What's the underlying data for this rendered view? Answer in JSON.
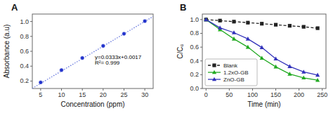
{
  "chart_data": [
    {
      "type": "scatter",
      "title": "A",
      "x_label": "Concentration (ppm)",
      "y_label": "Absorbance (a.u)",
      "xlim": [
        3,
        32
      ],
      "ylim": [
        0.1,
        1.1
      ],
      "xticks": [
        5,
        10,
        15,
        20,
        25,
        30
      ],
      "yticks": [
        0.2,
        0.4,
        0.6,
        0.8,
        {
          "value": 1.0,
          "label": "1.0"
        }
      ],
      "series": [
        {
          "type": "scatter",
          "x": [
            5,
            10,
            15,
            20,
            25,
            30
          ],
          "values": [
            0.182,
            0.347,
            0.51,
            0.672,
            0.835,
            1.005
          ],
          "color": "#2233cc",
          "marker": "circle"
        },
        {
          "type": "line",
          "x": [
            3,
            32
          ],
          "values": [
            0.1016,
            1.0673
          ],
          "color": "#6677dd",
          "line_style": "dotted"
        }
      ],
      "annotations": [
        {
          "text": "y=0.0333x+0.0017",
          "x": 18,
          "y": 0.5
        },
        {
          "text": "R²= 0.999",
          "x": 18,
          "y": 0.42
        }
      ]
    },
    {
      "type": "line",
      "title": "B",
      "x_label": "Time (min)",
      "y_label": "C/C₀",
      "xlim": [
        -8,
        258
      ],
      "ylim": [
        0.0,
        1.08
      ],
      "xticks": [
        0,
        50,
        100,
        150,
        200,
        250
      ],
      "yticks": [
        {
          "value": 0.0,
          "label": "0.0"
        },
        0.2,
        0.4,
        0.6,
        0.8,
        {
          "value": 1.0,
          "label": "1.0"
        }
      ],
      "x": [
        0,
        30,
        60,
        90,
        120,
        150,
        180,
        210,
        240
      ],
      "legend": "lower left",
      "series": [
        {
          "name": "Blank",
          "color": "#222222",
          "marker": "square",
          "line_style": "dashed",
          "values": [
            1.0,
            0.985,
            0.97,
            0.955,
            0.94,
            0.925,
            0.91,
            0.895,
            0.875
          ]
        },
        {
          "name": "1.2xO-GB",
          "color": "#22aa22",
          "marker": "triangle",
          "line_style": "solid",
          "values": [
            1.0,
            0.855,
            0.72,
            0.6,
            0.44,
            0.315,
            0.21,
            0.155,
            0.12
          ]
        },
        {
          "name": "ZnO-GB",
          "color": "#3333bb",
          "marker": "triangle",
          "line_style": "solid",
          "values": [
            1.0,
            0.88,
            0.81,
            0.72,
            0.595,
            0.43,
            0.32,
            0.24,
            0.195
          ]
        }
      ]
    }
  ]
}
